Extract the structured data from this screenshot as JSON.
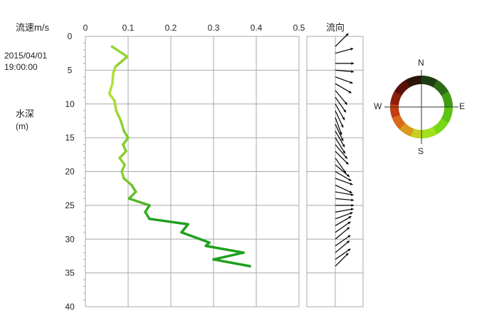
{
  "header": {
    "speed_label": "流速m/s",
    "direction_label": "流向",
    "timestamp_date": "2015/04/01",
    "timestamp_time": "19:00:00",
    "depth_label": "水深",
    "depth_unit": "(m)"
  },
  "compass": {
    "n": "N",
    "e": "E",
    "s": "S",
    "w": "W"
  },
  "colors": {
    "line_light": "#b4e23a",
    "line_dark": "#1ea01e",
    "grid": "#a8a8a8",
    "arrow": "#000000"
  },
  "chart_data": [
    {
      "type": "line",
      "title": "",
      "xlabel": "流速m/s",
      "ylabel": "水深 (m)",
      "xlim": [
        0,
        0.5
      ],
      "ylim": [
        0,
        40
      ],
      "y_inverted": true,
      "grid": true,
      "x_ticks": [
        "0",
        "0.1",
        "0.2",
        "0.3",
        "0.4",
        "0.5"
      ],
      "y_ticks": [
        "0",
        "5",
        "10",
        "15",
        "20",
        "25",
        "30",
        "35",
        "40"
      ],
      "points": [
        {
          "depth": 1.5,
          "speed": 0.062
        },
        {
          "depth": 3,
          "speed": 0.098
        },
        {
          "depth": 4.5,
          "speed": 0.07
        },
        {
          "depth": 5.5,
          "speed": 0.065
        },
        {
          "depth": 7,
          "speed": 0.063
        },
        {
          "depth": 8.5,
          "speed": 0.056
        },
        {
          "depth": 9.5,
          "speed": 0.068
        },
        {
          "depth": 11,
          "speed": 0.072
        },
        {
          "depth": 12.5,
          "speed": 0.083
        },
        {
          "depth": 14,
          "speed": 0.09
        },
        {
          "depth": 15,
          "speed": 0.1
        },
        {
          "depth": 16,
          "speed": 0.088
        },
        {
          "depth": 17,
          "speed": 0.095
        },
        {
          "depth": 18,
          "speed": 0.08
        },
        {
          "depth": 19,
          "speed": 0.092
        },
        {
          "depth": 20,
          "speed": 0.085
        },
        {
          "depth": 21,
          "speed": 0.09
        },
        {
          "depth": 22,
          "speed": 0.108
        },
        {
          "depth": 23,
          "speed": 0.118
        },
        {
          "depth": 24,
          "speed": 0.102
        },
        {
          "depth": 25,
          "speed": 0.15
        },
        {
          "depth": 26,
          "speed": 0.14
        },
        {
          "depth": 27,
          "speed": 0.15
        },
        {
          "depth": 27.8,
          "speed": 0.24
        },
        {
          "depth": 29,
          "speed": 0.225
        },
        {
          "depth": 30.5,
          "speed": 0.29
        },
        {
          "depth": 31,
          "speed": 0.282
        },
        {
          "depth": 32,
          "speed": 0.37
        },
        {
          "depth": 33,
          "speed": 0.3
        },
        {
          "depth": 34,
          "speed": 0.385
        }
      ]
    },
    {
      "type": "scatter",
      "title": "",
      "xlabel": "流向",
      "ylabel": "水深 (m)",
      "ylim": [
        0,
        40
      ],
      "y_inverted": true,
      "arrows": [
        {
          "depth": 1.5,
          "direction_deg": 45
        },
        {
          "depth": 2.5,
          "direction_deg": 75
        },
        {
          "depth": 4,
          "direction_deg": 90
        },
        {
          "depth": 5,
          "direction_deg": 95
        },
        {
          "depth": 6,
          "direction_deg": 110
        },
        {
          "depth": 7,
          "direction_deg": 120
        },
        {
          "depth": 8,
          "direction_deg": 140
        },
        {
          "depth": 9,
          "direction_deg": 145
        },
        {
          "depth": 10,
          "direction_deg": 150
        },
        {
          "depth": 11,
          "direction_deg": 155
        },
        {
          "depth": 12,
          "direction_deg": 160
        },
        {
          "depth": 13,
          "direction_deg": 155
        },
        {
          "depth": 14,
          "direction_deg": 150
        },
        {
          "depth": 15,
          "direction_deg": 148
        },
        {
          "depth": 16,
          "direction_deg": 140
        },
        {
          "depth": 17,
          "direction_deg": 135
        },
        {
          "depth": 18,
          "direction_deg": 145
        },
        {
          "depth": 19,
          "direction_deg": 130
        },
        {
          "depth": 20,
          "direction_deg": 120
        },
        {
          "depth": 21,
          "direction_deg": 110
        },
        {
          "depth": 22,
          "direction_deg": 115
        },
        {
          "depth": 23,
          "direction_deg": 100
        },
        {
          "depth": 24,
          "direction_deg": 95
        },
        {
          "depth": 25,
          "direction_deg": 90
        },
        {
          "depth": 26,
          "direction_deg": 80
        },
        {
          "depth": 27,
          "direction_deg": 70
        },
        {
          "depth": 28,
          "direction_deg": 60
        },
        {
          "depth": 29,
          "direction_deg": 55
        },
        {
          "depth": 30,
          "direction_deg": 50
        },
        {
          "depth": 31,
          "direction_deg": 55
        },
        {
          "depth": 32,
          "direction_deg": 50
        },
        {
          "depth": 33,
          "direction_deg": 55
        },
        {
          "depth": 34,
          "direction_deg": 45
        }
      ]
    }
  ]
}
